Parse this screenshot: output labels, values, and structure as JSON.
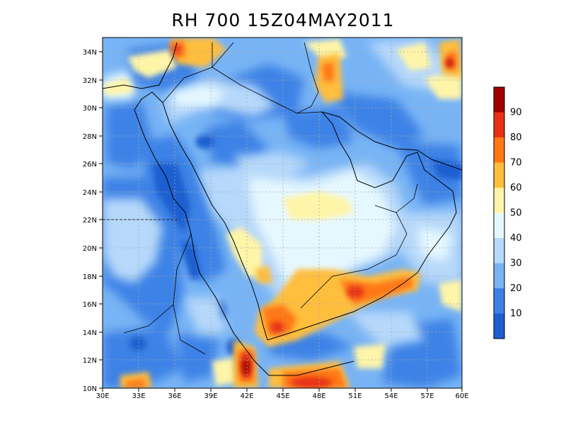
{
  "title": "RH 700  15Z04MAY2011",
  "axes": {
    "x_ticks": [
      "30E",
      "33E",
      "36E",
      "39E",
      "42E",
      "45E",
      "48E",
      "51E",
      "54E",
      "57E",
      "60E"
    ],
    "y_ticks": [
      "10N",
      "12N",
      "14N",
      "16N",
      "18N",
      "20N",
      "22N",
      "24N",
      "26N",
      "28N",
      "30N",
      "32N",
      "34N"
    ],
    "lon_range": [
      30,
      60
    ],
    "lat_range": [
      10,
      35
    ],
    "grid": true
  },
  "colorbar": {
    "levels": [
      10,
      20,
      30,
      40,
      50,
      60,
      70,
      80,
      90
    ],
    "labels": [
      "10",
      "20",
      "30",
      "40",
      "50",
      "60",
      "70",
      "80",
      "90"
    ],
    "colors": [
      "#1e5fd0",
      "#3c82e6",
      "#78b4f5",
      "#b6d8fa",
      "#e6f8ff",
      "#fff5a8",
      "#ffbe3c",
      "#ff7814",
      "#e63214",
      "#a00000"
    ]
  },
  "chart_data": {
    "type": "heatmap",
    "variable": "RH",
    "level": "700",
    "time": "15Z04MAY2011",
    "x_range": [
      30,
      60
    ],
    "y_range": [
      10,
      35
    ]
  }
}
